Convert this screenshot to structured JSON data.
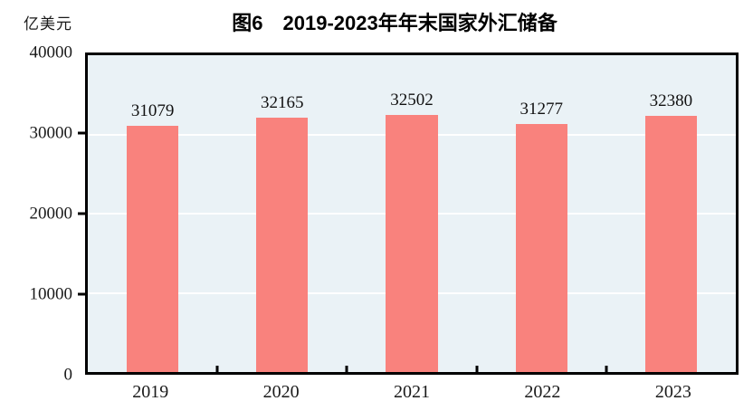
{
  "chart_data": {
    "type": "bar",
    "title": "图6　2019-2023年年末国家外汇储备",
    "unit_label": "亿美元",
    "categories": [
      "2019",
      "2020",
      "2021",
      "2022",
      "2023"
    ],
    "values": [
      31079,
      32165,
      32502,
      31277,
      32380
    ],
    "data_labels": true,
    "ylabel": "亿美元",
    "ylim": [
      0,
      40000
    ],
    "yticks": [
      0,
      10000,
      20000,
      30000,
      40000
    ],
    "grid": true,
    "legend_position": "none",
    "colors": {
      "bar": "#f9827d",
      "plot_bg": "#eaf2f6",
      "gridline": "#ffffff",
      "axis": "#000000",
      "text": "#1a1a1a"
    }
  }
}
